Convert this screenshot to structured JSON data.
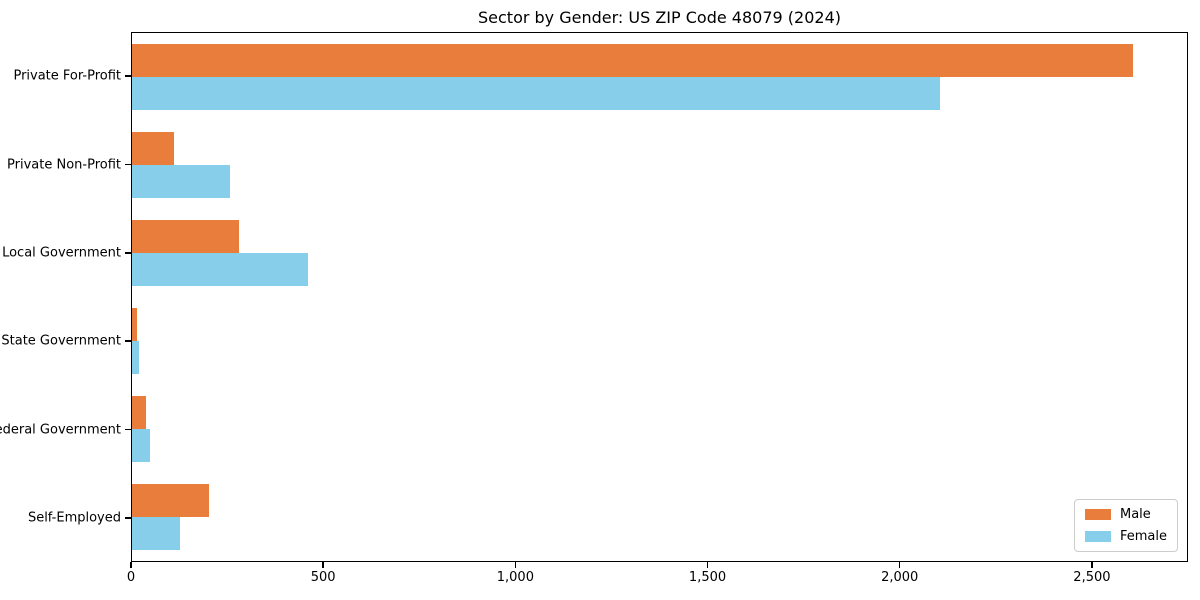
{
  "title": "Sector by Gender: US ZIP Code 48079 (2024)",
  "chart_data": {
    "type": "bar",
    "orientation": "horizontal",
    "title": "Sector by Gender: US ZIP Code 48079 (2024)",
    "categories": [
      "Private For-Profit",
      "Private Non-Profit",
      "Local Government",
      "State Government",
      "Federal Government",
      "Self-Employed"
    ],
    "series": [
      {
        "name": "Male",
        "color": "#e87d3c",
        "values": [
          2610,
          110,
          280,
          13,
          37,
          200
        ]
      },
      {
        "name": "Female",
        "color": "#87ceeb",
        "values": [
          2105,
          255,
          460,
          18,
          46,
          125
        ]
      }
    ],
    "xlabel": "",
    "ylabel": "",
    "xlim": [
      0,
      2750
    ],
    "xticks": [
      0,
      500,
      1000,
      1500,
      2000,
      2500
    ],
    "xtick_labels": [
      "0",
      "500",
      "1,000",
      "1,500",
      "2,000",
      "2,500"
    ],
    "grid": false,
    "legend_position": "lower right",
    "background_color": "#ffffff",
    "axis_color": "#000000"
  }
}
